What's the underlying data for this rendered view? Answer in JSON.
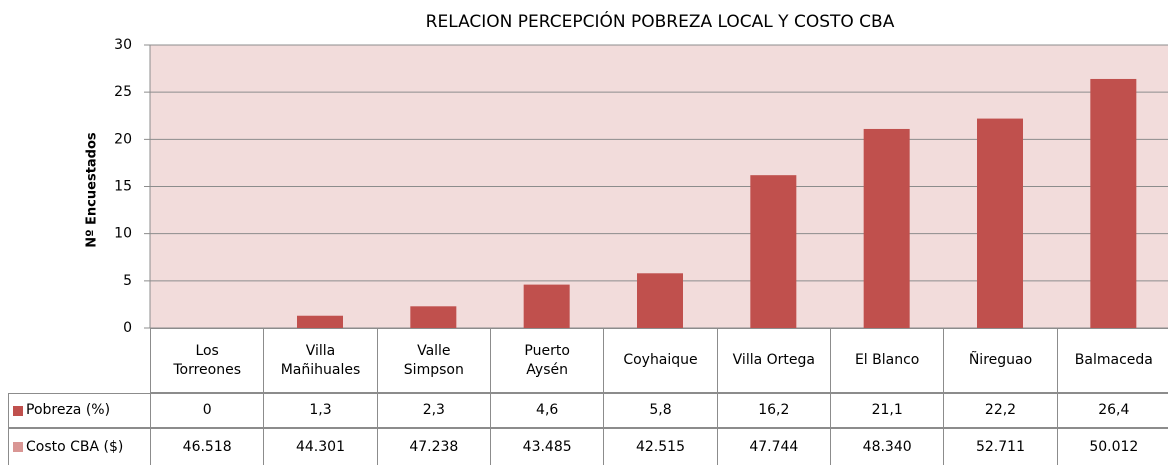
{
  "chart_data": {
    "type": "bar",
    "title": "RELACION PERCEPCIÓN POBREZA LOCAL Y COSTO CBA",
    "y_label": "Nº Encuestados",
    "categories": [
      "Los\nTorreones",
      "Villa\nMañihuales",
      "Valle\nSimpson",
      "Puerto\nAysén",
      "Coyhaique",
      "Villa Ortega",
      "El Blanco",
      "Ñireguao",
      "Balmaceda"
    ],
    "series": [
      {
        "name": "Pobreza (%)",
        "color": "#c0504d",
        "values": [
          0,
          1.3,
          2.3,
          4.6,
          5.8,
          16.2,
          21.1,
          22.2,
          26.4
        ],
        "value_labels": [
          "0",
          "1,3",
          "2,3",
          "4,6",
          "5,8",
          "16,2",
          "21,1",
          "22,2",
          "26,4"
        ]
      },
      {
        "name": "Costo CBA ($)",
        "color": "#d99694",
        "table_only": true,
        "values": [
          46518,
          44301,
          47238,
          43485,
          42515,
          47744,
          48340,
          52711,
          50012
        ],
        "value_labels": [
          "46.518",
          "44.301",
          "47.238",
          "43.485",
          "42.515",
          "47.744",
          "48.340",
          "52.711",
          "50.012"
        ]
      }
    ],
    "ylim": [
      0,
      30
    ],
    "yticks": [
      0,
      5,
      10,
      15,
      20,
      25,
      30
    ],
    "grid": true,
    "plot_background": "#f2dcdb"
  }
}
